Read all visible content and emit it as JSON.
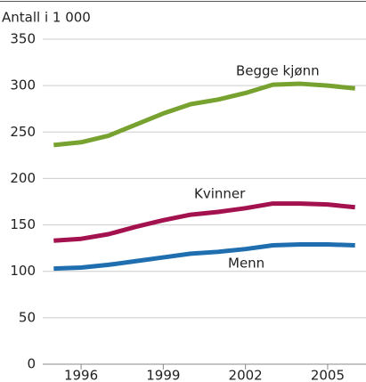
{
  "chart_data": {
    "type": "line",
    "ylabel": "Antall i 1 000",
    "x": [
      1995,
      1996,
      1997,
      1998,
      1999,
      2000,
      2001,
      2002,
      2003,
      2004,
      2005,
      2006
    ],
    "series": [
      {
        "name": "Begge kjønn",
        "color": "#77a22f",
        "values": [
          236,
          239,
          246,
          258,
          270,
          280,
          285,
          292,
          301,
          302,
          300,
          297
        ]
      },
      {
        "name": "Kvinner",
        "color": "#a3124e",
        "values": [
          133,
          135,
          140,
          148,
          155,
          161,
          164,
          168,
          173,
          173,
          172,
          169
        ]
      },
      {
        "name": "Menn",
        "color": "#1f6fb0",
        "values": [
          103,
          104,
          107,
          111,
          115,
          119,
          121,
          124,
          128,
          129,
          129,
          128
        ]
      }
    ],
    "xlim": [
      1994.6,
      2006.4
    ],
    "xticks": [
      1996,
      1999,
      2002,
      2005
    ],
    "ylim": [
      0,
      350
    ],
    "yticks": [
      0,
      50,
      100,
      150,
      200,
      250,
      300,
      350
    ],
    "grid": true
  }
}
